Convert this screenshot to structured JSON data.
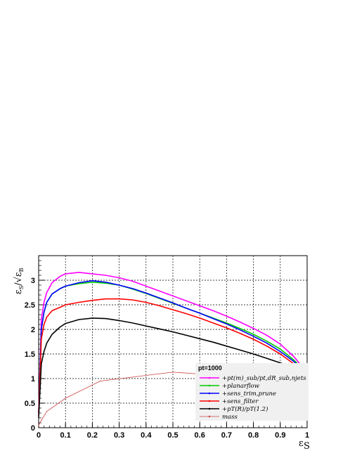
{
  "chart_data": {
    "type": "line",
    "xlabel": "ε_S",
    "ylabel": "ε_S/√ε_B",
    "xlim": [
      0,
      1
    ],
    "ylim": [
      0,
      3.5
    ],
    "x_ticks": [
      0,
      0.1,
      0.2,
      0.3,
      0.4,
      0.5,
      0.6,
      0.7,
      0.8,
      0.9,
      1
    ],
    "x_tick_labels": [
      "0",
      "0.1",
      "0.2",
      "0.3",
      "0.4",
      "0.5",
      "0.6",
      "0.7",
      "0.8",
      "0.9",
      "1"
    ],
    "y_ticks": [
      0,
      0.5,
      1,
      1.5,
      2,
      2.5,
      3
    ],
    "y_tick_labels": [
      "0",
      "0.5",
      "1",
      "1.5",
      "2",
      "2.5",
      "3"
    ],
    "grid": true,
    "legend": {
      "title": "pt=1000",
      "placement": "bottom-right"
    },
    "series": [
      {
        "name": "+pt(m)_sub/pt,dR_sub,njets",
        "color": "#ff00ff",
        "x": [
          0,
          0.01,
          0.02,
          0.03,
          0.05,
          0.08,
          0.1,
          0.15,
          0.2,
          0.25,
          0.3,
          0.35,
          0.4,
          0.45,
          0.5,
          0.55,
          0.6,
          0.65,
          0.7,
          0.75,
          0.8,
          0.85,
          0.9,
          0.95,
          0.98
        ],
        "y": [
          0.3,
          2.2,
          2.55,
          2.75,
          2.95,
          3.08,
          3.13,
          3.16,
          3.13,
          3.1,
          3.05,
          2.98,
          2.88,
          2.78,
          2.68,
          2.58,
          2.48,
          2.38,
          2.27,
          2.15,
          2.02,
          1.88,
          1.7,
          1.45,
          1.25
        ]
      },
      {
        "name": "+planarflow",
        "color": "#00cc00",
        "x": [
          0,
          0.01,
          0.02,
          0.03,
          0.05,
          0.08,
          0.1,
          0.15,
          0.2,
          0.25,
          0.3,
          0.35,
          0.4,
          0.45,
          0.5,
          0.55,
          0.6,
          0.65,
          0.7,
          0.75,
          0.8,
          0.85,
          0.9,
          0.95,
          0.98
        ],
        "y": [
          0.3,
          2.0,
          2.35,
          2.55,
          2.72,
          2.83,
          2.88,
          2.93,
          2.96,
          2.94,
          2.9,
          2.82,
          2.73,
          2.63,
          2.53,
          2.43,
          2.33,
          2.23,
          2.13,
          2.02,
          1.9,
          1.76,
          1.6,
          1.38,
          1.22
        ]
      },
      {
        "name": "+sens_trim,prune",
        "color": "#0000ff",
        "x": [
          0,
          0.01,
          0.02,
          0.03,
          0.05,
          0.08,
          0.1,
          0.15,
          0.2,
          0.25,
          0.3,
          0.35,
          0.4,
          0.45,
          0.5,
          0.55,
          0.6,
          0.65,
          0.7,
          0.75,
          0.8,
          0.85,
          0.9,
          0.95,
          0.98
        ],
        "y": [
          0.3,
          2.0,
          2.35,
          2.55,
          2.72,
          2.83,
          2.88,
          2.95,
          2.99,
          2.96,
          2.9,
          2.83,
          2.74,
          2.64,
          2.54,
          2.43,
          2.33,
          2.22,
          2.11,
          1.99,
          1.86,
          1.72,
          1.55,
          1.35,
          1.2
        ]
      },
      {
        "name": "+sens_filter",
        "color": "#ff0000",
        "x": [
          0,
          0.01,
          0.02,
          0.03,
          0.05,
          0.08,
          0.1,
          0.15,
          0.2,
          0.25,
          0.3,
          0.35,
          0.4,
          0.45,
          0.5,
          0.55,
          0.6,
          0.65,
          0.7,
          0.75,
          0.8,
          0.85,
          0.9,
          0.95,
          0.98
        ],
        "y": [
          0.25,
          1.8,
          2.1,
          2.25,
          2.38,
          2.45,
          2.5,
          2.55,
          2.59,
          2.62,
          2.62,
          2.6,
          2.55,
          2.48,
          2.4,
          2.32,
          2.23,
          2.13,
          2.03,
          1.92,
          1.8,
          1.66,
          1.5,
          1.3,
          1.18
        ]
      },
      {
        "name": "+pT(R)/pT(1.2)",
        "color": "#000000",
        "x": [
          0,
          0.01,
          0.02,
          0.03,
          0.05,
          0.08,
          0.1,
          0.15,
          0.2,
          0.25,
          0.3,
          0.35,
          0.4,
          0.45,
          0.5,
          0.55,
          0.6,
          0.65,
          0.7,
          0.75,
          0.8,
          0.85,
          0.9,
          0.95,
          0.98
        ],
        "y": [
          0.2,
          1.3,
          1.55,
          1.72,
          1.9,
          2.05,
          2.12,
          2.2,
          2.23,
          2.22,
          2.18,
          2.13,
          2.07,
          2.01,
          1.95,
          1.88,
          1.81,
          1.74,
          1.66,
          1.58,
          1.5,
          1.41,
          1.32,
          1.22,
          1.15
        ]
      },
      {
        "name": "mass",
        "color": "#cc4444",
        "x": [
          0,
          0.01,
          0.03,
          0.1,
          0.23,
          0.5,
          0.58,
          0.7,
          0.8,
          0.9,
          0.95,
          0.98
        ],
        "y": [
          0.05,
          0.15,
          0.33,
          0.6,
          0.95,
          1.13,
          1.1,
          1.09,
          1.1,
          1.1,
          1.1,
          1.08
        ]
      }
    ]
  }
}
